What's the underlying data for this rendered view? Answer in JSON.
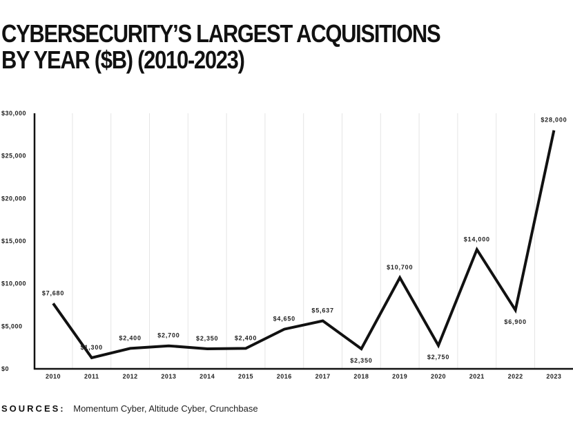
{
  "title": {
    "line1": "CYBERSECURITY’S LARGEST ACQUISITIONS",
    "line2": "BY YEAR ($B) (2010-2023)"
  },
  "sources": {
    "label": "SOURCES:",
    "text": "Momentum Cyber, Altitude Cyber, Crunchbase"
  },
  "colors": {
    "line": "#111111",
    "grid": "#e4e4e4",
    "axis": "#111111"
  },
  "chart_data": {
    "type": "line",
    "title": "CYBERSECURITY’S LARGEST ACQUISITIONS BY YEAR ($B) (2010-2023)",
    "xlabel": "",
    "ylabel": "",
    "ylim": [
      0,
      30000
    ],
    "grid": "vertical",
    "legend": "none",
    "yticks": [
      {
        "value": 0,
        "label": "$0"
      },
      {
        "value": 5000,
        "label": "$5,000"
      },
      {
        "value": 10000,
        "label": "$10,000"
      },
      {
        "value": 15000,
        "label": "$15,000"
      },
      {
        "value": 20000,
        "label": "$20,000"
      },
      {
        "value": 25000,
        "label": "$25,000"
      },
      {
        "value": 30000,
        "label": "$30,000"
      }
    ],
    "categories": [
      "2010",
      "2011",
      "2012",
      "2013",
      "2014",
      "2015",
      "2016",
      "2017",
      "2018",
      "2019",
      "2020",
      "2021",
      "2022",
      "2023"
    ],
    "values": [
      7680,
      1300,
      2400,
      2700,
      2350,
      2400,
      4650,
      5637,
      2350,
      10700,
      2750,
      14000,
      6900,
      28000
    ],
    "data_labels": [
      "$7,680",
      "$1,300",
      "$2,400",
      "$2,700",
      "$2,350",
      "$2,400",
      "$4,650",
      "$5,637",
      "$2,350",
      "$10,700",
      "$2,750",
      "$14,000",
      "$6,900",
      "$28,000"
    ],
    "label_positions": [
      "above",
      "above",
      "above",
      "above",
      "above",
      "above",
      "above",
      "above",
      "below",
      "above",
      "below",
      "above",
      "below",
      "above"
    ]
  }
}
